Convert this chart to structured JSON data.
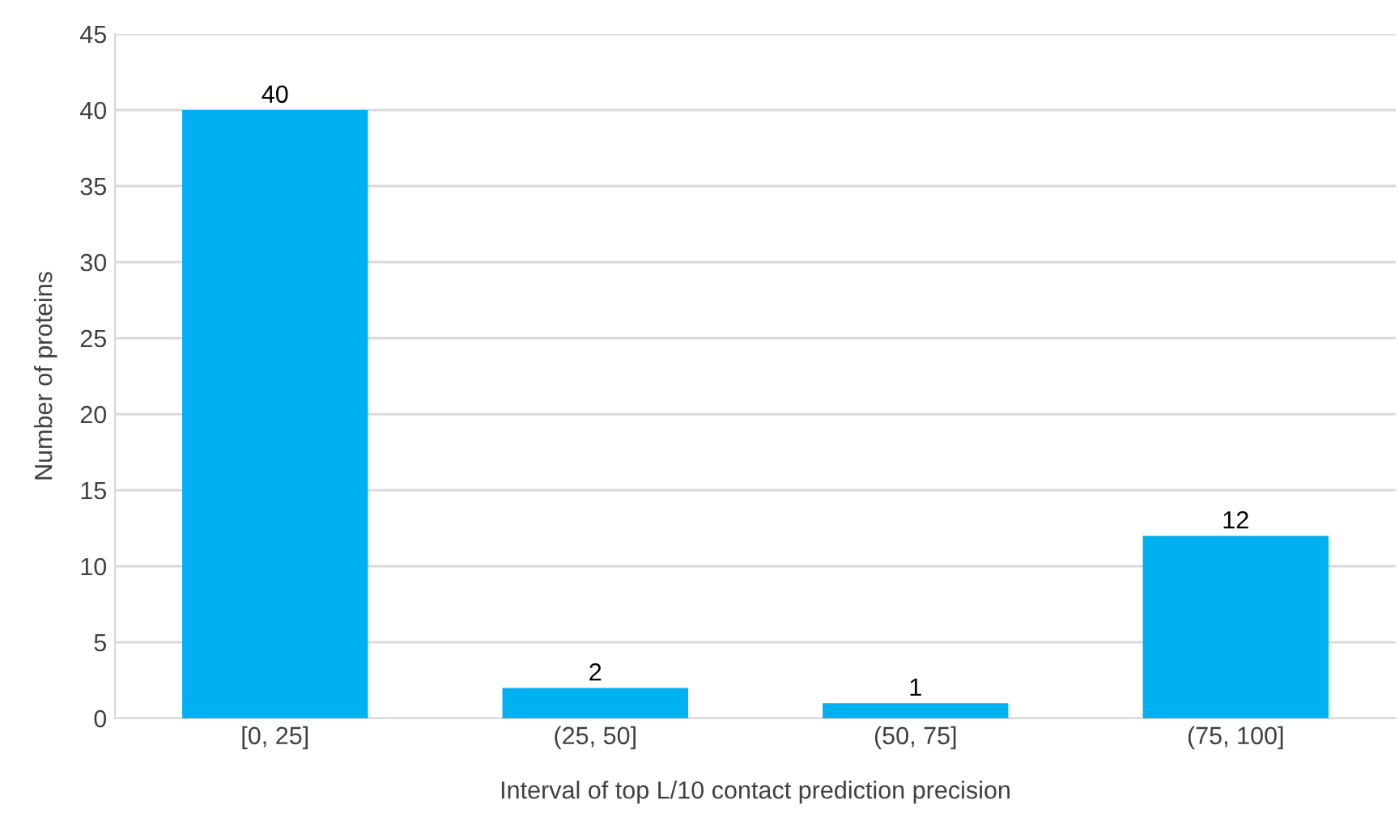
{
  "chart_data": {
    "type": "bar",
    "xlabel": "Interval of top L/10 contact prediction precision",
    "ylabel": "Number of proteins",
    "categories": [
      "[0, 25]",
      "(25, 50]",
      "(50, 75]",
      "(75, 100]"
    ],
    "values": [
      40,
      2,
      1,
      12
    ],
    "color": "#00b0f0",
    "ylim": [
      0,
      45
    ],
    "yticks": [
      0,
      5,
      10,
      15,
      20,
      25,
      30,
      35,
      40,
      45
    ],
    "grid": "y",
    "data_labels": true
  }
}
